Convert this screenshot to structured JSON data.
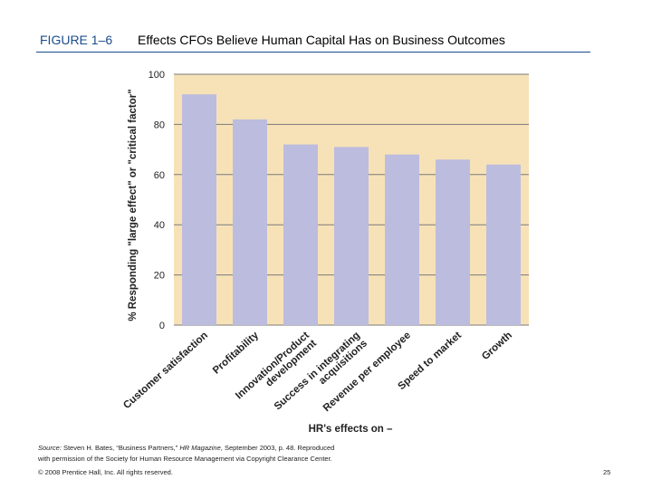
{
  "figure": {
    "label": "FIGURE 1–6",
    "title": "Effects CFOs Believe Human Capital Has on Business Outcomes"
  },
  "chart_data": {
    "type": "bar",
    "title": "Effects CFOs Believe Human Capital Has on Business Outcomes",
    "categories": [
      [
        "Customer satisfaction"
      ],
      [
        "Profitability"
      ],
      [
        "Innovation/Product",
        "development"
      ],
      [
        "Success in integrating",
        "acquisitions"
      ],
      [
        "Revenue per employee"
      ],
      [
        "Speed to market"
      ],
      [
        "Growth"
      ]
    ],
    "values": [
      92,
      82,
      72,
      71,
      68,
      66,
      64
    ],
    "ylabel": "% Responding \"large effect\" or \"critical factor\"",
    "xlabel": "HR's effects on –",
    "ylim": [
      0,
      100
    ],
    "yticks": [
      "0",
      "20",
      "40",
      "60",
      "80",
      "100"
    ],
    "grid": true,
    "colors": {
      "plot_bg": "#f7e2b8",
      "bar": "#bcbcde",
      "grid": "#7a7a7a"
    }
  },
  "source": {
    "label": "Source:",
    "text_a": "Steven H. Bates, “Business Partners,” ",
    "magazine": "HR Magazine",
    "text_b": ", September 2003, p. 48. Reproduced",
    "line2": "with permission of the Society for Human Resource Management via Copyright Clearance Center."
  },
  "footer": {
    "copyright": "© 2008 Prentice Hall, Inc. All rights reserved.",
    "page": "25"
  }
}
